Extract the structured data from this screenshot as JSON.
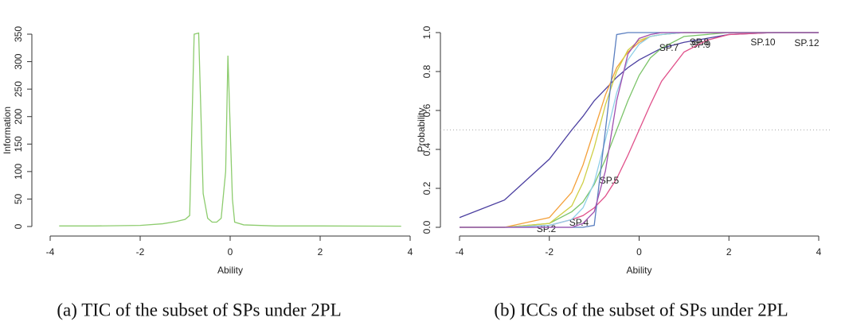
{
  "chart_data": [
    {
      "type": "line",
      "caption": "(a) TIC of the subset of SPs under 2PL",
      "x_label": "Ability",
      "y_label": "Information",
      "xlim": [
        -4,
        4
      ],
      "xticks": [
        -4,
        -2,
        0,
        2,
        4
      ],
      "ylim": [
        0,
        350
      ],
      "yticks": [
        0,
        50,
        100,
        150,
        200,
        250,
        300,
        350
      ],
      "x": [
        -3.8,
        -3,
        -2,
        -1.5,
        -1.2,
        -1,
        -0.9,
        -0.8,
        -0.7,
        -0.6,
        -0.5,
        -0.4,
        -0.3,
        -0.2,
        -0.1,
        -0.05,
        0.05,
        0.1,
        0.3,
        1,
        2,
        3.8
      ],
      "series": [
        {
          "color": "#8dcc6e",
          "values": [
            1,
            1,
            2,
            5,
            9,
            13,
            20,
            350,
            352,
            60,
            15,
            8,
            8,
            15,
            100,
            311,
            50,
            8,
            3,
            1,
            1,
            0.5
          ]
        }
      ]
    },
    {
      "type": "line",
      "caption": "(b) ICCs of the subset of SPs under 2PL",
      "x_label": "Ability",
      "y_label": "Probability",
      "xlim": [
        -4,
        4
      ],
      "xticks": [
        -4,
        -2,
        0,
        2,
        4
      ],
      "ylim": [
        0,
        1
      ],
      "yticks": [
        {
          "value": 0,
          "label": "0.0"
        },
        {
          "value": 0.2,
          "label": "0.2"
        },
        {
          "value": 0.4,
          "label": "0.4"
        },
        {
          "value": 0.6,
          "label": "0.6"
        },
        {
          "value": 0.8,
          "label": "0.8"
        },
        {
          "value": 1,
          "label": "1.0"
        }
      ],
      "hline": 0.5,
      "x": [
        -4,
        -3,
        -2,
        -1.5,
        -1.25,
        -1,
        -0.75,
        -0.5,
        -0.25,
        0,
        0.25,
        0.5,
        1,
        1.5,
        2,
        3,
        4
      ],
      "series": [
        {
          "name": "SP.9",
          "color": "#4b3fa0",
          "values": [
            0.05,
            0.14,
            0.35,
            0.5,
            0.57,
            0.65,
            0.71,
            0.77,
            0.82,
            0.86,
            0.89,
            0.92,
            0.95,
            0.97,
            0.99,
            1,
            1
          ]
        },
        {
          "name": "SP.12",
          "color": "#e0508a",
          "values": [
            0,
            0,
            0.01,
            0.04,
            0.06,
            0.1,
            0.16,
            0.25,
            0.37,
            0.5,
            0.63,
            0.75,
            0.9,
            0.96,
            0.99,
            1,
            1
          ]
        },
        {
          "name": "SP.5",
          "color": "#7cc46a",
          "values": [
            0,
            0,
            0.02,
            0.08,
            0.13,
            0.22,
            0.35,
            0.5,
            0.65,
            0.78,
            0.87,
            0.92,
            0.98,
            0.99,
            1,
            1,
            1
          ]
        },
        {
          "name": "SP.2",
          "color": "#f4a03a",
          "values": [
            0,
            0,
            0.05,
            0.18,
            0.32,
            0.5,
            0.68,
            0.82,
            0.9,
            0.95,
            0.98,
            0.99,
            1,
            1,
            1,
            1,
            1
          ]
        },
        {
          "name": "SP.4",
          "color": "#cfcf45",
          "values": [
            0,
            0,
            0.02,
            0.11,
            0.23,
            0.41,
            0.63,
            0.8,
            0.91,
            0.96,
            0.98,
            0.99,
            1,
            1,
            1,
            1,
            1
          ]
        },
        {
          "name": "SP.7",
          "color": "#8fcfe8",
          "values": [
            0,
            0,
            0.01,
            0.04,
            0.1,
            0.23,
            0.45,
            0.69,
            0.86,
            0.94,
            0.98,
            0.99,
            1,
            1,
            1,
            1,
            1
          ]
        },
        {
          "name": "SP.8",
          "color": "#5a7fc0",
          "values": [
            0,
            0,
            0,
            0,
            0,
            0.01,
            0.5,
            0.99,
            1,
            1,
            1,
            1,
            1,
            1,
            1,
            1,
            1
          ]
        },
        {
          "name": "SP.10",
          "color": "#a050b0",
          "values": [
            0,
            0,
            0,
            0,
            0.02,
            0.08,
            0.29,
            0.65,
            0.89,
            0.97,
            0.99,
            1,
            1,
            1,
            1,
            1,
            1
          ]
        }
      ]
    }
  ]
}
